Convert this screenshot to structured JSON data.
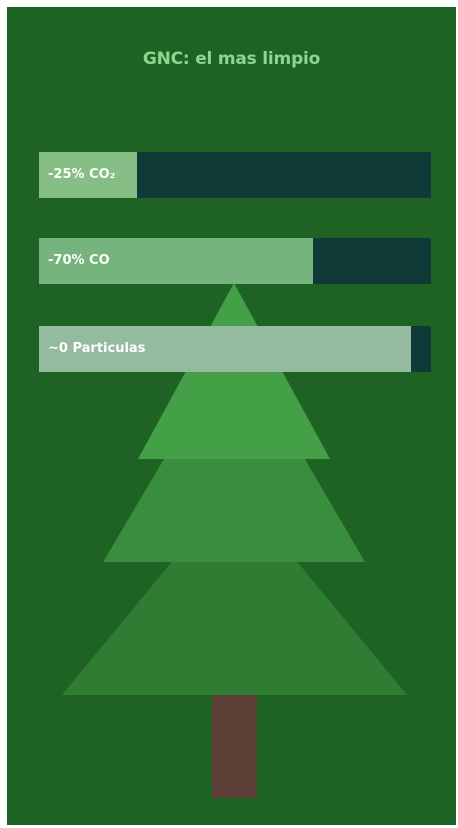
{
  "chart_data": {
    "type": "bar",
    "orientation": "horizontal",
    "title": "GNC: el mas limpio",
    "categories": [
      "-25% CO₂",
      "-70% CO",
      "~0 Particulas"
    ],
    "values": [
      25,
      70,
      95
    ],
    "xlim": [
      0,
      100
    ],
    "grid": false,
    "legend": "none"
  },
  "colors": {
    "background": "#1e6324",
    "title": "#8fd48f",
    "track": "#0f3a38",
    "fills": [
      "#86bf86",
      "#7cbb82",
      "#b6dcb9"
    ],
    "fill_opacity": [
      1,
      0.95,
      0.8
    ],
    "tree_layers": [
      "#2e7d32",
      "#388e3c",
      "#43a047"
    ],
    "trunk": "#5d4037"
  },
  "decoration": {
    "icon": "pine-tree-icon"
  }
}
